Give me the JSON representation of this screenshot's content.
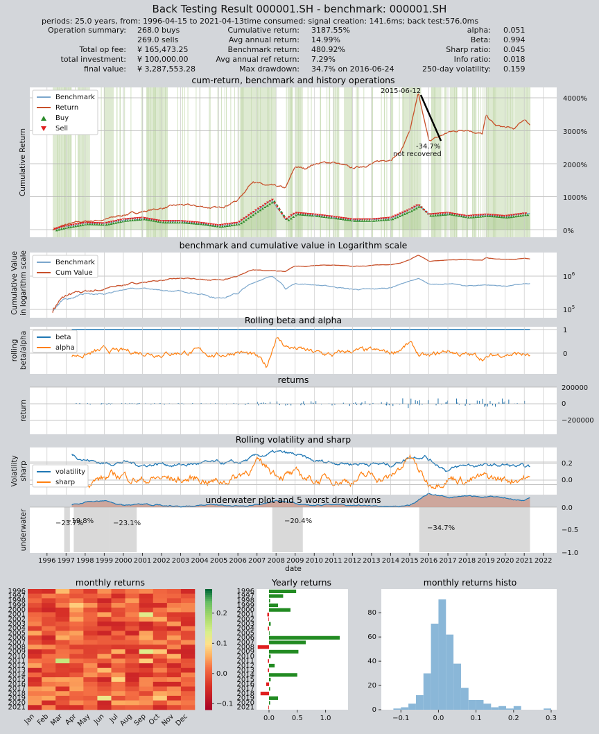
{
  "title": "Back Testing Result 000001.SH - benchmark: 000001.SH",
  "summary_line": "periods: 25.0 years, from: 1996-04-15 to 2021-04-13time consumed:   signal creation: 141.6ms;  back test:576.0ms",
  "summary": {
    "labels1": [
      "Operation summary:",
      "",
      "Total op fee:",
      "total investment:",
      "final value:"
    ],
    "values1": [
      "268.0      buys",
      "269.0      sells",
      "¥   165,473.25",
      "¥   100,000.00",
      "¥ 3,287,553.28"
    ],
    "labels2": [
      "Cumulative return:",
      "Avg annual return:",
      "Benchmark return:",
      "Avg annual ref return:",
      "Max drawdown:"
    ],
    "values2": [
      "3187.55%",
      "14.99%",
      "480.92%",
      "7.29%",
      "34.7% on 2016-06-24"
    ],
    "labels3": [
      "alpha:",
      "Beta:",
      "Sharp ratio:",
      "Info ratio:",
      "250-day volatility:"
    ],
    "values3": [
      "0.051",
      "0.994",
      "0.045",
      "0.018",
      "0.159"
    ]
  },
  "colors": {
    "benchmark": "#7aa6cc",
    "return": "#c8502a",
    "buy": "#2a8a2a",
    "sell": "#e02020",
    "beta": "#1f77b4",
    "alpha": "#ff7f0e",
    "returns": "#1f6fa8",
    "vol": "#1f77b4",
    "sharp": "#ff7f0e",
    "underwater": "#1f77b4",
    "uwfill": "#cc9a8c",
    "drawdown_shade": "#bfbfbf",
    "hold": "#c8dcb4",
    "yearly_pos": "#228b22",
    "yearly_neg": "#e02020",
    "histo": "#8ab7d8"
  },
  "panels": {
    "p1": {
      "title": "cum-return, benchmark and history operations",
      "ylabel": "Cumulative Return",
      "legend": [
        "Benchmark",
        "Return",
        "Buy",
        "Sell"
      ],
      "yticks": [
        "0%",
        "1000%",
        "2000%",
        "3000%",
        "4000%"
      ],
      "peak_label": "2015-06-12",
      "dd_label": "-34.7%",
      "dd_note": "not recovered"
    },
    "p2": {
      "title": "benchmark and cumulative value in Logarithm scale",
      "ylabel1": "Cumulative Value",
      "ylabel2": "in logarithm scale",
      "legend": [
        "Benchmark",
        "Cum Value"
      ],
      "yticks_base": [
        "10",
        "10"
      ],
      "yticks_exp": [
        "6",
        "5"
      ]
    },
    "p3": {
      "title": "Rolling beta and alpha",
      "ylabel1": "rolling",
      "ylabel2": "beta/alpha",
      "legend": [
        "beta",
        "alpha"
      ],
      "yticks": [
        "1",
        "0"
      ]
    },
    "p4": {
      "title": "returns",
      "ylabel": "return",
      "yticks": [
        "200000",
        "0",
        "−200000"
      ]
    },
    "p5": {
      "title": "Rolling volatility and sharp",
      "ylabel1": "Volatility",
      "ylabel2": "sharp",
      "legend": [
        "volatility",
        "sharp"
      ],
      "yticks": [
        "0.2",
        "0.0"
      ]
    },
    "p6": {
      "title": "underwater plot and 5 worst drawdowns",
      "ylabel": "underwater",
      "yticks": [
        "0.0",
        "−0.5",
        "−1.0"
      ],
      "xlabel": "date",
      "dd_labels": [
        "−23.7%",
        "−19.8%",
        "−23.1%",
        "−20.4%",
        "−34.7%"
      ]
    },
    "heat": {
      "title": "monthly returns",
      "months": [
        "Jan",
        "Feb",
        "Mar",
        "Apr",
        "May",
        "Jun",
        "Jul",
        "Aug",
        "Sep",
        "Oct",
        "Nov",
        "Dec"
      ],
      "cbar_ticks": [
        "0.2",
        "0.1",
        "0.0",
        "−0.1"
      ]
    },
    "yearly": {
      "title": "Yearly returns",
      "xticks": [
        "0.0",
        "0.5",
        "1.0"
      ]
    },
    "histo": {
      "title": "monthly returns histo",
      "xticks": [
        "−0.1",
        "0.0",
        "0.1",
        "0.2",
        "0.3"
      ],
      "yticks": [
        "0",
        "20",
        "40",
        "60",
        "80"
      ]
    }
  },
  "years": [
    "1996",
    "1997",
    "1998",
    "1999",
    "2000",
    "2001",
    "2002",
    "2003",
    "2004",
    "2005",
    "2006",
    "2007",
    "2008",
    "2009",
    "2010",
    "2011",
    "2012",
    "2013",
    "2014",
    "2015",
    "2016",
    "2017",
    "2018",
    "2019",
    "2020",
    "2021",
    "2022"
  ],
  "chart_data": [
    {
      "type": "line",
      "title": "cum-return, benchmark and history operations",
      "ylabel": "Cumulative Return",
      "series": [
        {
          "name": "Return",
          "x": [
            1996.3,
            1997,
            1998,
            1999,
            2000,
            2001,
            2002,
            2003,
            2004,
            2005,
            2006,
            2006.8,
            2007.3,
            2008,
            2008.5,
            2009,
            2009.5,
            2010,
            2011,
            2012,
            2013,
            2014,
            2014.5,
            2015,
            2015.45,
            2015.8,
            2016,
            2016.5,
            2017,
            2018,
            2018.8,
            2019,
            2019.5,
            2020,
            2020.5,
            2021,
            2021.3
          ],
          "y": [
            0,
            150,
            250,
            300,
            450,
            550,
            650,
            750,
            700,
            650,
            900,
            1500,
            1350,
            1300,
            1250,
            1900,
            1850,
            2000,
            2050,
            1850,
            2000,
            2150,
            2350,
            3000,
            4100,
            3200,
            2700,
            2800,
            2950,
            3050,
            2900,
            3450,
            3150,
            3100,
            3050,
            3350,
            3187
          ]
        },
        {
          "name": "Benchmark",
          "x": [
            1996.3,
            1997,
            1998,
            1999,
            2000,
            2001,
            2002,
            2003,
            2004,
            2005,
            2006,
            2007,
            2007.8,
            2008.5,
            2009,
            2010,
            2011,
            2012,
            2013,
            2014,
            2015,
            2015.45,
            2016,
            2017,
            2018,
            2019,
            2020,
            2021,
            2021.3
          ],
          "y": [
            0,
            100,
            200,
            180,
            300,
            350,
            250,
            250,
            200,
            120,
            200,
            600,
            900,
            300,
            500,
            450,
            380,
            300,
            300,
            350,
            600,
            750,
            450,
            500,
            400,
            450,
            400,
            480,
            480
          ]
        }
      ],
      "annotations": [
        {
          "text": "2015-06-12"
        },
        {
          "text": "-34.7%"
        },
        {
          "text": "not recovered"
        }
      ]
    },
    {
      "type": "line",
      "title": "benchmark and cumulative value in Logarithm scale",
      "log_y": true,
      "series": [
        {
          "name": "Benchmark"
        },
        {
          "name": "Cum Value"
        }
      ]
    },
    {
      "type": "line",
      "title": "Rolling beta and alpha",
      "series": [
        {
          "name": "beta",
          "y_const": 1
        },
        {
          "name": "alpha"
        }
      ]
    },
    {
      "type": "bar",
      "title": "returns",
      "ylim": [
        -300000,
        200000
      ]
    },
    {
      "type": "line",
      "title": "Rolling volatility and sharp",
      "series": [
        {
          "name": "volatility"
        },
        {
          "name": "sharp"
        }
      ]
    },
    {
      "type": "area",
      "title": "underwater plot and 5 worst drawdowns",
      "ylim": [
        -1,
        0
      ],
      "drawdowns": [
        -0.237,
        -0.198,
        -0.231,
        -0.204,
        -0.347
      ]
    },
    {
      "type": "heatmap",
      "title": "monthly returns",
      "vmin": -0.12,
      "vmax": 0.28
    },
    {
      "type": "bar",
      "title": "Yearly returns",
      "categories": [
        "1996",
        "1997",
        "1998",
        "1999",
        "2000",
        "2001",
        "2002",
        "2003",
        "2004",
        "2005",
        "2006",
        "2007",
        "2008",
        "2009",
        "2010",
        "2011",
        "2012",
        "2013",
        "2014",
        "2015",
        "2016",
        "2017",
        "2018",
        "2019",
        "2020",
        "2021"
      ],
      "values": [
        0.48,
        0.25,
        0.02,
        0.16,
        0.38,
        -0.03,
        -0.01,
        0.03,
        -0.02,
        0.01,
        1.25,
        0.65,
        -0.2,
        0.52,
        0.03,
        -0.02,
        0.1,
        -0.02,
        0.5,
        0.03,
        -0.05,
        0.02,
        -0.15,
        0.16,
        0.02,
        -0.01
      ]
    },
    {
      "type": "bar",
      "title": "monthly returns histo",
      "bins": [
        -0.12,
        -0.1,
        -0.08,
        -0.06,
        -0.04,
        -0.02,
        0,
        0.02,
        0.04,
        0.06,
        0.08,
        0.1,
        0.12,
        0.14,
        0.16,
        0.18,
        0.2,
        0.22,
        0.24,
        0.26,
        0.28,
        0.3
      ],
      "counts": [
        1,
        2,
        5,
        12,
        30,
        71,
        91,
        62,
        38,
        18,
        8,
        8,
        5,
        2,
        3,
        1,
        3,
        0,
        0,
        0,
        1
      ]
    }
  ]
}
